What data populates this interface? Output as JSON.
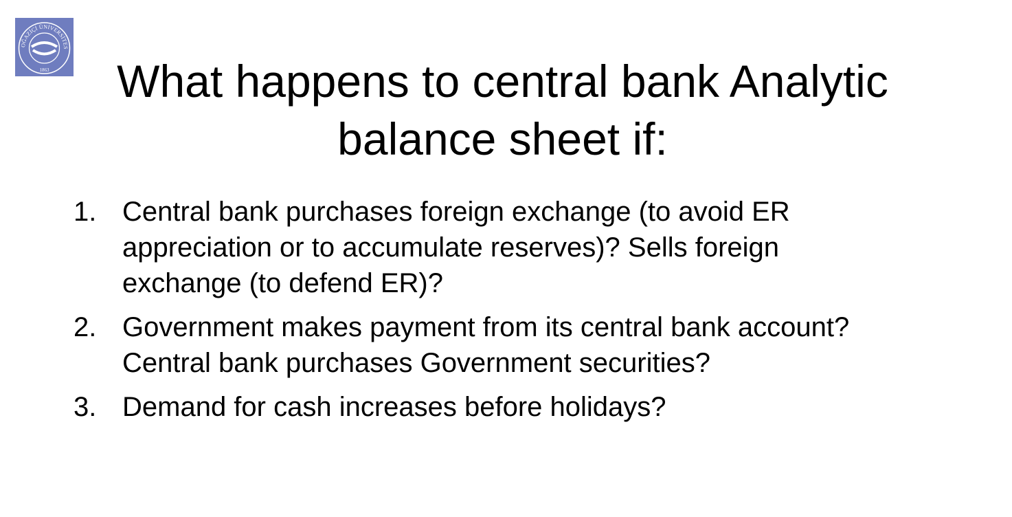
{
  "logo": {
    "top_text": "BOĞAZİÇİ ÜNİVERSİTESİ",
    "year": "1863",
    "colors": {
      "background": "#6f7dbf",
      "mark": "#ffffff"
    }
  },
  "slide": {
    "title_lines": [
      "What happens to central bank Analytic",
      "balance sheet if:"
    ],
    "items": [
      {
        "number": "1.",
        "lines": [
          "Central bank purchases foreign exchange (to avoid ER",
          "appreciation or to accumulate reserves)? Sells foreign",
          "exchange (to defend ER)?"
        ]
      },
      {
        "number": "2.",
        "lines": [
          "Government makes payment from its central bank account?",
          "Central bank purchases Government securities?"
        ]
      },
      {
        "number": "3.",
        "lines": [
          "Demand for cash increases before holidays?"
        ]
      }
    ]
  }
}
